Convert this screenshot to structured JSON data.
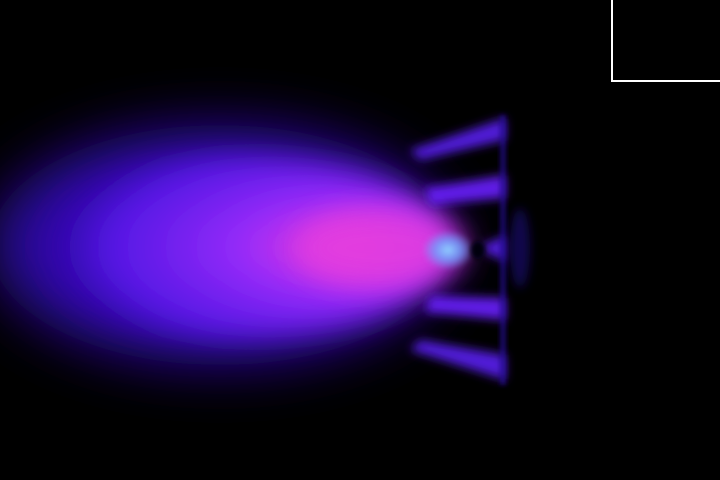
{
  "scene": {
    "background": "#000000",
    "glow_colors": {
      "core": "#6fb4ff",
      "hot": "#ff3fd2",
      "body": "#6a1cff",
      "edge": "#2a00b0"
    }
  },
  "inset": {
    "border_color": "#ffffff"
  }
}
